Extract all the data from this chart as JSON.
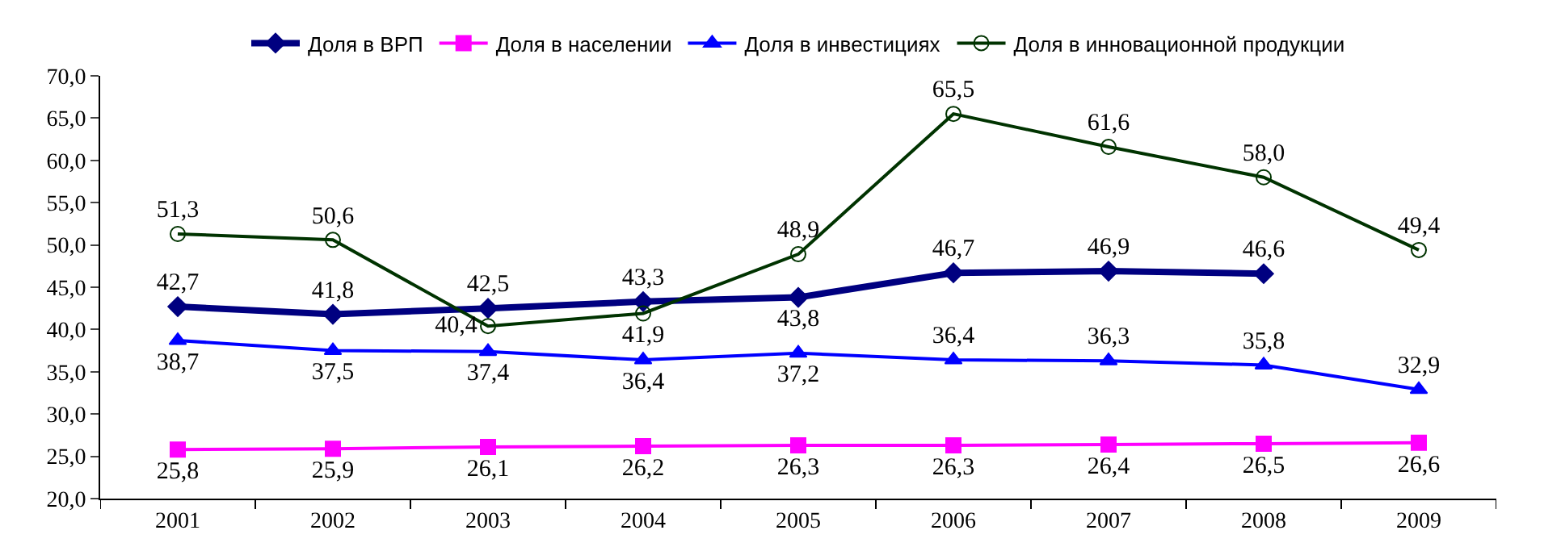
{
  "chart_data": {
    "type": "line",
    "categories": [
      "2001",
      "2002",
      "2003",
      "2004",
      "2005",
      "2006",
      "2007",
      "2008",
      "2009"
    ],
    "series": [
      {
        "name": "Доля в ВРП",
        "color": "#000080",
        "marker": "diamond",
        "values": [
          42.7,
          41.8,
          42.5,
          43.3,
          43.8,
          46.7,
          46.9,
          46.6,
          null
        ],
        "value_labels": [
          "42,7",
          "41,8",
          "42,5",
          "43,3",
          "43,8",
          "46,7",
          "46,9",
          "46,6",
          null
        ]
      },
      {
        "name": "Доля в населении",
        "color": "#ff00ff",
        "marker": "square",
        "values": [
          25.8,
          25.9,
          26.1,
          26.2,
          26.3,
          26.3,
          26.4,
          26.5,
          26.6
        ],
        "value_labels": [
          "25,8",
          "25,9",
          "26,1",
          "26,2",
          "26,3",
          "26,3",
          "26,4",
          "26,5",
          "26,6"
        ]
      },
      {
        "name": "Доля в инвестициях",
        "color": "#0000ff",
        "marker": "triangle",
        "values": [
          38.7,
          37.5,
          37.4,
          36.4,
          37.2,
          36.4,
          36.3,
          35.8,
          32.9
        ],
        "value_labels": [
          "38,7",
          "37,5",
          "37,4",
          "36,4",
          "37,2",
          "36,4",
          "36,3",
          "35,8",
          "32,9"
        ]
      },
      {
        "name": "Доля в инновационной продукции",
        "color": "#003300",
        "marker": "circle",
        "values": [
          51.3,
          50.6,
          40.4,
          41.9,
          48.9,
          65.5,
          61.6,
          58.0,
          49.4
        ],
        "value_labels": [
          "51,3",
          "50,6",
          "40,4",
          "41,9",
          "48,9",
          "65,5",
          "61,6",
          "58,0",
          "49,4"
        ]
      }
    ],
    "ylim": [
      20,
      70
    ],
    "yticks": [
      {
        "value": 20,
        "label": "20,0"
      },
      {
        "value": 25,
        "label": "25,0"
      },
      {
        "value": 30,
        "label": "30,0"
      },
      {
        "value": 35,
        "label": "35,0"
      },
      {
        "value": 40,
        "label": "40,0"
      },
      {
        "value": 45,
        "label": "45,0"
      },
      {
        "value": 50,
        "label": "50,0"
      },
      {
        "value": 55,
        "label": "55,0"
      },
      {
        "value": 60,
        "label": "60,0"
      },
      {
        "value": 65,
        "label": "65,0"
      },
      {
        "value": 70,
        "label": "70,0"
      }
    ],
    "grid": false,
    "legend": "top",
    "line_style": "solid"
  }
}
